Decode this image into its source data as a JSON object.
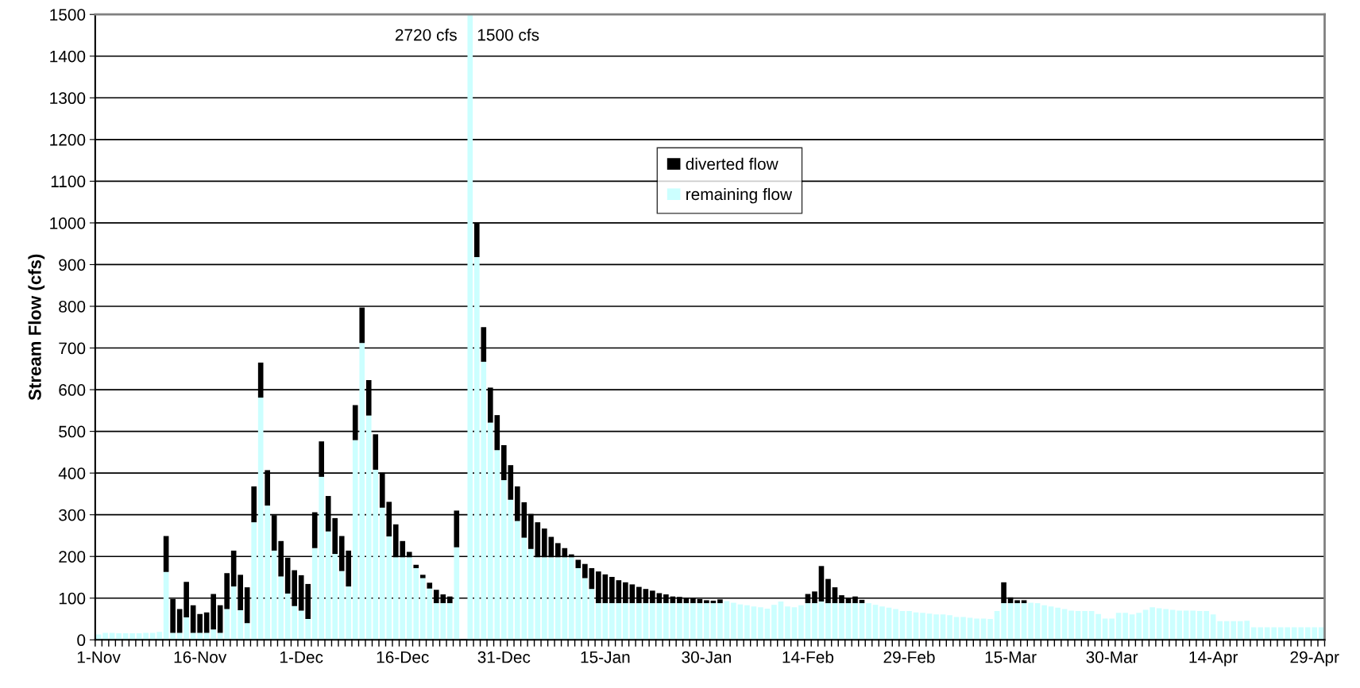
{
  "chart_data": {
    "type": "bar",
    "stacked": true,
    "ylabel": "Stream Flow (cfs)",
    "annotations": [
      "2720 cfs",
      "1500 cfs"
    ],
    "categories": [
      "1-Nov",
      null,
      null,
      null,
      null,
      null,
      null,
      null,
      null,
      null,
      null,
      null,
      null,
      null,
      null,
      "16-Nov",
      null,
      null,
      null,
      null,
      null,
      null,
      null,
      null,
      null,
      null,
      null,
      null,
      null,
      null,
      "1-Dec",
      null,
      null,
      null,
      null,
      null,
      null,
      null,
      null,
      null,
      null,
      null,
      null,
      null,
      null,
      "16-Dec",
      null,
      null,
      null,
      null,
      null,
      null,
      null,
      null,
      null,
      null,
      null,
      null,
      null,
      null,
      "31-Dec",
      null,
      null,
      null,
      null,
      null,
      null,
      null,
      null,
      null,
      null,
      null,
      null,
      null,
      null,
      "15-Jan",
      null,
      null,
      null,
      null,
      null,
      null,
      null,
      null,
      null,
      null,
      null,
      null,
      null,
      null,
      "30-Jan",
      null,
      null,
      null,
      null,
      null,
      null,
      null,
      null,
      null,
      null,
      null,
      null,
      null,
      null,
      "14-Feb",
      null,
      null,
      null,
      null,
      null,
      null,
      null,
      null,
      null,
      null,
      null,
      null,
      null,
      null,
      "29-Feb",
      null,
      null,
      null,
      null,
      null,
      null,
      null,
      null,
      null,
      null,
      null,
      null,
      null,
      null,
      "15-Mar",
      null,
      null,
      null,
      null,
      null,
      null,
      null,
      null,
      null,
      null,
      null,
      null,
      null,
      null,
      "30-Mar",
      null,
      null,
      null,
      null,
      null,
      null,
      null,
      null,
      null,
      null,
      null,
      null,
      null,
      null,
      "14-Apr",
      null,
      null,
      null,
      null,
      null,
      null,
      null,
      null,
      null,
      null,
      null,
      null,
      null,
      null,
      "29-Apr",
      null
    ],
    "series": [
      {
        "name": "remaining flow",
        "color": "#ccffff",
        "values": [
          13,
          17,
          17,
          16,
          16,
          16,
          16,
          17,
          17,
          19,
          163,
          17,
          17,
          54,
          17,
          17,
          17,
          25,
          17,
          74,
          128,
          71,
          40,
          282,
          581,
          322,
          214,
          152,
          111,
          81,
          70,
          50,
          220,
          391,
          260,
          206,
          165,
          128,
          479,
          712,
          538,
          408,
          317,
          248,
          198,
          198,
          198,
          172,
          148,
          123,
          88,
          88,
          88,
          222,
          null,
          1500,
          918,
          667,
          521,
          455,
          383,
          336,
          285,
          245,
          218,
          198,
          198,
          198,
          198,
          198,
          198,
          172,
          148,
          122,
          88,
          88,
          88,
          88,
          88,
          88,
          88,
          88,
          88,
          88,
          88,
          88,
          88,
          88,
          88,
          88,
          88,
          88,
          88,
          93,
          89,
          85,
          83,
          80,
          78,
          75,
          84,
          92,
          80,
          78,
          83,
          88,
          88,
          92,
          88,
          88,
          88,
          88,
          88,
          88,
          88,
          84,
          80,
          77,
          74,
          69,
          69,
          66,
          65,
          63,
          61,
          61,
          59,
          55,
          55,
          53,
          51,
          51,
          50,
          69,
          88,
          88,
          88,
          88,
          89,
          88,
          83,
          80,
          77,
          74,
          70,
          69,
          69,
          69,
          62,
          51,
          51,
          65,
          65,
          61,
          65,
          72,
          78,
          76,
          74,
          72,
          70,
          70,
          70,
          69,
          69,
          61,
          45,
          45,
          45,
          45,
          46,
          30,
          30,
          30,
          30,
          30,
          30,
          30,
          30,
          30,
          30,
          30
        ]
      },
      {
        "name": "diverted flow",
        "color": "#000000",
        "values": [
          0,
          0,
          0,
          0,
          0,
          0,
          0,
          0,
          0,
          0,
          86,
          81,
          57,
          85,
          66,
          45,
          49,
          85,
          66,
          86,
          86,
          85,
          86,
          86,
          84,
          85,
          85,
          85,
          86,
          86,
          85,
          84,
          86,
          85,
          85,
          86,
          84,
          86,
          84,
          85,
          85,
          85,
          84,
          83,
          79,
          39,
          13,
          8,
          8,
          14,
          32,
          21,
          16,
          88,
          0,
          0,
          83,
          83,
          84,
          84,
          84,
          83,
          83,
          85,
          84,
          84,
          69,
          49,
          34,
          22,
          7,
          20,
          34,
          50,
          76,
          69,
          63,
          55,
          50,
          45,
          39,
          34,
          30,
          24,
          21,
          16,
          15,
          13,
          13,
          10,
          7,
          6,
          9,
          0,
          0,
          0,
          0,
          0,
          0,
          0,
          0,
          0,
          0,
          0,
          0,
          22,
          28,
          85,
          58,
          38,
          19,
          13,
          16,
          8,
          0,
          0,
          0,
          0,
          0,
          0,
          0,
          0,
          0,
          0,
          0,
          0,
          0,
          0,
          0,
          0,
          0,
          0,
          0,
          0,
          50,
          14,
          7,
          7,
          0,
          0,
          0,
          0,
          0,
          0,
          0,
          0,
          0,
          0,
          0,
          0,
          0,
          0,
          0,
          0,
          0,
          0,
          0,
          0,
          0,
          0,
          0,
          0,
          0,
          0,
          0,
          0,
          0,
          0,
          0,
          0,
          0,
          0,
          0,
          0,
          0,
          0,
          0,
          0,
          0,
          0,
          0,
          0
        ]
      }
    ],
    "ylim": [
      0,
      1500
    ],
    "yticks": [
      0,
      100,
      200,
      300,
      400,
      500,
      600,
      700,
      800,
      900,
      1000,
      1100,
      1200,
      1300,
      1400,
      1500
    ],
    "grid": "y",
    "legend": "top"
  }
}
